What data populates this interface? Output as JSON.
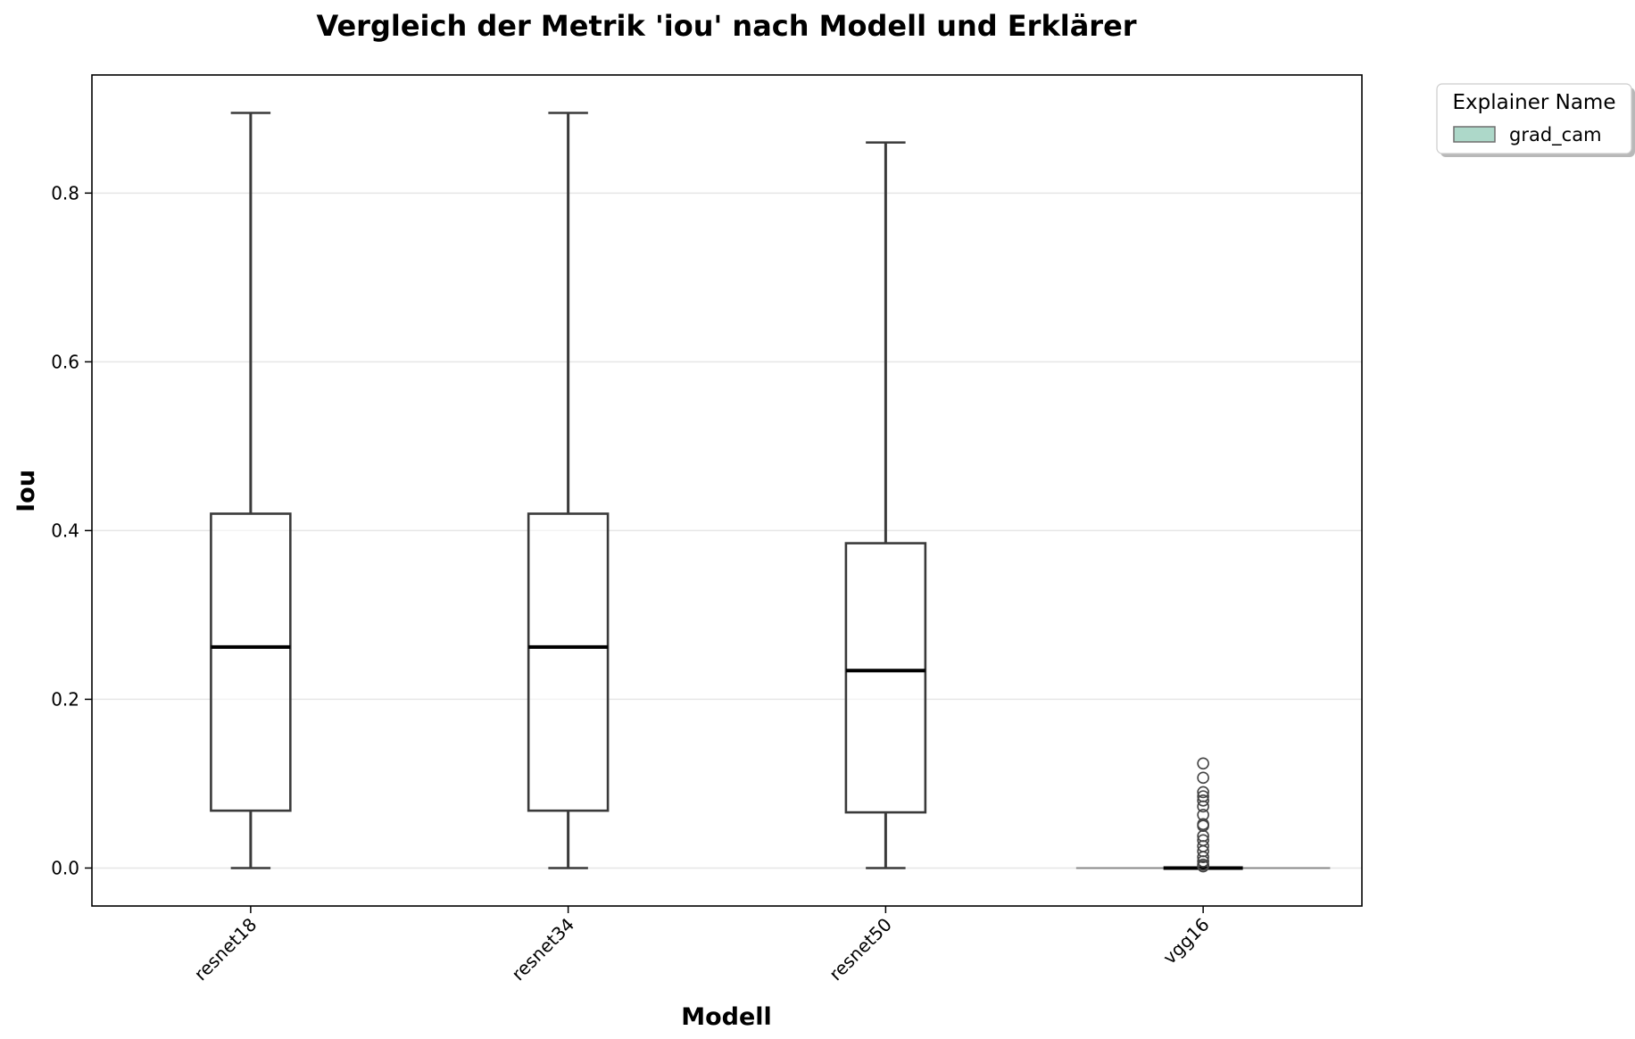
{
  "chart_data": {
    "type": "box",
    "title": "Vergleich der Metrik 'iou' nach Modell und Erklärer",
    "xlabel": "Modell",
    "ylabel": "Iou",
    "categories": [
      "resnet18",
      "resnet34",
      "resnet50",
      "vgg16"
    ],
    "ylim": [
      -0.045,
      0.94
    ],
    "yticks": [
      0.0,
      0.2,
      0.4,
      0.6,
      0.8
    ],
    "ytick_labels": [
      "0.0",
      "0.2",
      "0.4",
      "0.6",
      "0.8"
    ],
    "grid": "horizontal",
    "legend": {
      "title": "Explainer Name",
      "placement": "outside-top-right",
      "entries": [
        {
          "label": "grad_cam",
          "color": "#9fd2c0"
        }
      ]
    },
    "series": [
      {
        "name": "grad_cam",
        "boxes": [
          {
            "category": "resnet18",
            "whisker_low": 0.0,
            "q1": 0.068,
            "median": 0.262,
            "q3": 0.42,
            "whisker_high": 0.895,
            "outliers": []
          },
          {
            "category": "resnet34",
            "whisker_low": 0.0,
            "q1": 0.068,
            "median": 0.262,
            "q3": 0.42,
            "whisker_high": 0.895,
            "outliers": []
          },
          {
            "category": "resnet50",
            "whisker_low": 0.0,
            "q1": 0.066,
            "median": 0.234,
            "q3": 0.385,
            "whisker_high": 0.86,
            "outliers": []
          },
          {
            "category": "vgg16",
            "whisker_low": 0.0,
            "q1": 0.0,
            "median": 0.0,
            "q3": 0.0,
            "whisker_high": 0.0,
            "outliers": [
              0.124,
              0.107,
              0.09,
              0.085,
              0.08,
              0.073,
              0.063,
              0.052,
              0.05,
              0.038,
              0.033,
              0.026,
              0.02,
              0.013,
              0.008,
              0.004,
              0.002
            ]
          }
        ]
      }
    ]
  }
}
